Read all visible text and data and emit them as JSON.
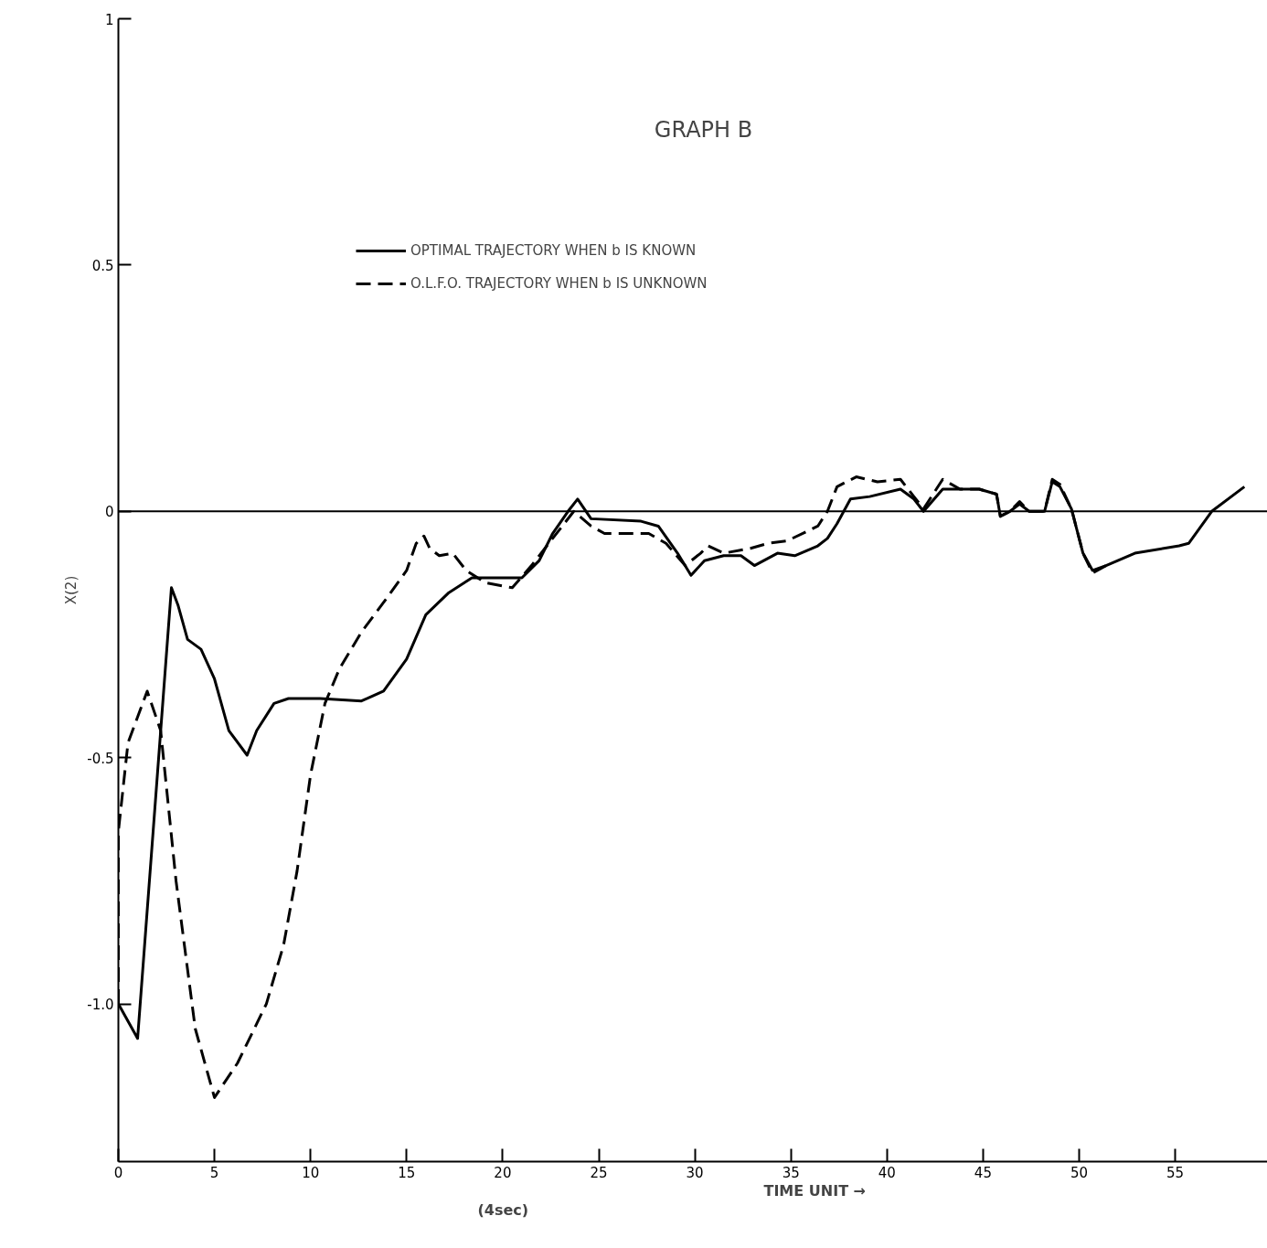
{
  "chart_data": {
    "type": "line",
    "title": "GRAPH B",
    "xlabel": "TIME UNIT →",
    "ylabel": "X(2)",
    "annotations": [
      "(4sec)"
    ],
    "xlim": [
      0,
      59.8
    ],
    "ylim": [
      -1.32,
      1
    ],
    "xticks": [
      0,
      5,
      10,
      15,
      20,
      25,
      30,
      35,
      40,
      45,
      50,
      55
    ],
    "yticks": [
      {
        "value": -1,
        "label": "-1.0"
      },
      -0.5,
      0,
      0.5,
      1
    ],
    "grid": false,
    "legend": "top",
    "marker": "none",
    "ref_lines": [
      {
        "axis": "y",
        "value": 0,
        "label": null,
        "color": "#000000"
      }
    ],
    "series": [
      {
        "name": "OPTIMAL TRAJECTORY WHEN b IS KNOWN",
        "color": "#000000",
        "line_style": "solid",
        "x": [
          0,
          1,
          2.76,
          3.1,
          3.6,
          4.3,
          5.0,
          5.75,
          6.7,
          7.2,
          8.1,
          8.85,
          10.5,
          12.65,
          13.8,
          15.0,
          16.0,
          17.2,
          18.4,
          20.5,
          21.0,
          21.9,
          22.6,
          23.4,
          23.9,
          24.6,
          27.2,
          28.1,
          29.1,
          29.8,
          30.5,
          31.5,
          32.4,
          33.1,
          34.3,
          35.2,
          36.4,
          36.9,
          37.4,
          38.1,
          39.1,
          40.7,
          41.4,
          41.9,
          42.9,
          44.8,
          45.7,
          45.9,
          46.4,
          46.9,
          47.4,
          48.2,
          48.6,
          49.0,
          49.6,
          50.2,
          50.7,
          51.4,
          52.9,
          55.2,
          55.7,
          56.9,
          58.6
        ],
        "values": [
          -1.0,
          -1.07,
          -0.155,
          -0.19,
          -0.26,
          -0.28,
          -0.34,
          -0.445,
          -0.495,
          -0.445,
          -0.39,
          -0.38,
          -0.38,
          -0.385,
          -0.365,
          -0.3,
          -0.21,
          -0.165,
          -0.135,
          -0.135,
          -0.135,
          -0.1,
          -0.045,
          0,
          0.025,
          -0.015,
          -0.02,
          -0.03,
          -0.085,
          -0.13,
          -0.1,
          -0.09,
          -0.09,
          -0.11,
          -0.085,
          -0.09,
          -0.07,
          -0.055,
          -0.025,
          0.025,
          0.03,
          0.045,
          0.025,
          0,
          0.045,
          0.045,
          0.035,
          -0.01,
          0,
          0.015,
          0,
          0,
          0.06,
          0.05,
          0.005,
          -0.085,
          -0.12,
          -0.11,
          -0.085,
          -0.07,
          -0.065,
          0,
          0.05
        ]
      },
      {
        "name": "O.L.F.O. TRAJECTORY WHEN b IS UNKNOWN",
        "color": "#000000",
        "line_style": "dashed",
        "x": [
          0,
          0,
          0.5,
          1.5,
          2.2,
          3.0,
          4.0,
          5.0,
          6.2,
          7.7,
          8.6,
          9.3,
          10.0,
          10.75,
          11.5,
          12.65,
          13.8,
          15.0,
          15.5,
          15.9,
          16.2,
          16.7,
          17.4,
          18.1,
          19.1,
          20.5,
          21.5,
          22.4,
          23.1,
          23.7,
          24.6,
          25.3,
          27.6,
          28.5,
          29.5,
          30.3,
          30.7,
          31.5,
          32.9,
          33.8,
          34.8,
          36.4,
          36.9,
          37.4,
          38.4,
          39.5,
          40.7,
          41.4,
          41.9,
          42.9,
          43.8,
          44.8,
          45.7,
          45.9,
          46.4,
          46.9,
          47.4,
          48.2,
          48.6,
          49.0,
          49.6,
          50.2,
          50.7,
          51.4
        ],
        "values": [
          -1.0,
          -0.65,
          -0.47,
          -0.365,
          -0.445,
          -0.75,
          -1.05,
          -1.19,
          -1.12,
          -1.0,
          -0.88,
          -0.73,
          -0.535,
          -0.39,
          -0.32,
          -0.245,
          -0.185,
          -0.12,
          -0.065,
          -0.05,
          -0.075,
          -0.09,
          -0.085,
          -0.12,
          -0.145,
          -0.155,
          -0.11,
          -0.065,
          -0.03,
          0,
          -0.03,
          -0.045,
          -0.045,
          -0.065,
          -0.11,
          -0.085,
          -0.07,
          -0.085,
          -0.075,
          -0.065,
          -0.06,
          -0.03,
          0,
          0.05,
          0.07,
          0.06,
          0.065,
          0.03,
          0.005,
          0.065,
          0.045,
          0.045,
          0.035,
          -0.01,
          0,
          0.02,
          0,
          0,
          0.065,
          0.055,
          0.005,
          -0.085,
          -0.125,
          -0.11
        ]
      }
    ]
  }
}
